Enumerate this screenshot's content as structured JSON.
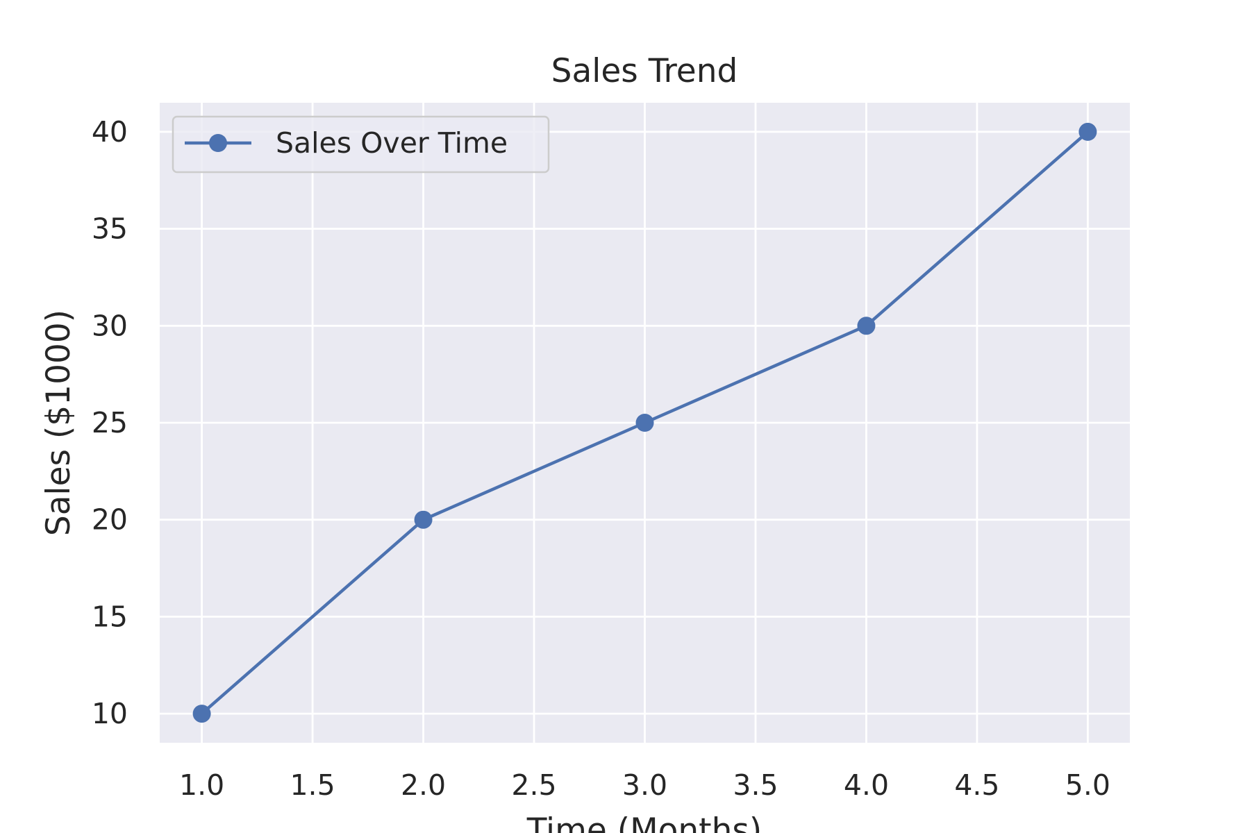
{
  "chart_data": {
    "type": "line",
    "title": "Sales Trend",
    "xlabel": "Time (Months)",
    "ylabel": "Sales ($1000)",
    "x": [
      1.0,
      2.0,
      3.0,
      4.0,
      5.0
    ],
    "series": [
      {
        "name": "Sales Over Time",
        "values": [
          10,
          20,
          25,
          30,
          40
        ],
        "color": "#4c72b0",
        "marker": "circle"
      }
    ],
    "xticks": [
      "1.0",
      "1.5",
      "2.0",
      "2.5",
      "3.0",
      "3.5",
      "4.0",
      "4.5",
      "5.0"
    ],
    "yticks": [
      "10",
      "15",
      "20",
      "25",
      "30",
      "35",
      "40"
    ],
    "xlim": [
      0.81,
      5.19
    ],
    "ylim": [
      8.5,
      41.5
    ],
    "grid": true,
    "legend_position": "upper-left",
    "colors": {
      "plot_background": "#eaeaf2",
      "grid": "#ffffff",
      "text": "#262626"
    }
  }
}
